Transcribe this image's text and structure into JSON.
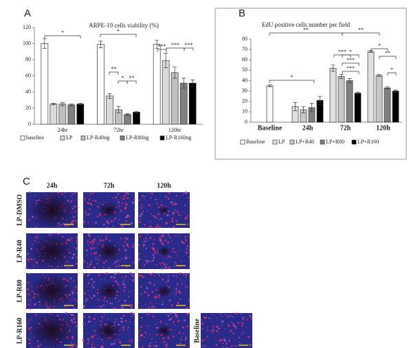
{
  "chart_data": [
    {
      "type": "bar",
      "panel": "A",
      "title": "ARPE-19 cells viability (%)",
      "categories": [
        "24hr",
        "72hr",
        "120hr"
      ],
      "series": [
        {
          "name": "baseline",
          "color": "#ffffff",
          "values": [
            100,
            99,
            99
          ],
          "errors": [
            6,
            4,
            5
          ]
        },
        {
          "name": "LP",
          "color": "#d9d9d9",
          "values": [
            25,
            35,
            79
          ],
          "errors": [
            1,
            3,
            9
          ]
        },
        {
          "name": "LP-R40ng",
          "color": "#bfbfbf",
          "values": [
            25,
            18,
            64
          ],
          "errors": [
            2,
            4,
            7
          ]
        },
        {
          "name": "LP-R80ng",
          "color": "#808080",
          "values": [
            24,
            12,
            51
          ],
          "errors": [
            1,
            1,
            6
          ]
        },
        {
          "name": "LP-R160ng",
          "color": "#000000",
          "values": [
            25,
            15,
            51
          ],
          "errors": [
            1,
            1,
            4
          ]
        }
      ],
      "ylim": [
        0,
        120
      ],
      "yticks": [
        0,
        20,
        40,
        60,
        80,
        100,
        120
      ],
      "grid": false,
      "annotations": [
        "*",
        "*",
        "**",
        "*",
        "**",
        "***",
        "***",
        "***"
      ]
    },
    {
      "type": "bar",
      "panel": "B",
      "title": "EdU positive cells number per field",
      "categories": [
        "Baseline",
        "24h",
        "72h",
        "120h"
      ],
      "series": [
        {
          "name": "Baseline",
          "color": "#ffffff",
          "values": [
            35,
            null,
            null,
            null
          ],
          "errors": [
            1,
            null,
            null,
            null
          ]
        },
        {
          "name": "LP",
          "color": "#e0e0e0",
          "values": [
            null,
            15,
            52,
            68
          ],
          "errors": [
            null,
            4,
            3,
            1
          ]
        },
        {
          "name": "LP+R40",
          "color": "#c8c8c8",
          "values": [
            null,
            12,
            44,
            45
          ],
          "errors": [
            null,
            3,
            2,
            1
          ]
        },
        {
          "name": "LP+R80",
          "color": "#808080",
          "values": [
            null,
            14,
            40,
            33
          ],
          "errors": [
            null,
            4,
            2,
            1
          ]
        },
        {
          "name": "LP+R160",
          "color": "#000000",
          "values": [
            null,
            21,
            28,
            30
          ],
          "errors": [
            null,
            4,
            1,
            1
          ]
        }
      ],
      "ylim": [
        0,
        80
      ],
      "yticks": [
        0,
        10,
        20,
        30,
        40,
        50,
        60,
        70,
        80
      ],
      "grid": false,
      "annotations": [
        "**",
        "**",
        "*",
        "***",
        "*",
        "***",
        "***",
        "*",
        "**",
        "*"
      ]
    }
  ],
  "figure_c": {
    "panel": "C",
    "columns": [
      "24h",
      "72h",
      "120h"
    ],
    "rows": [
      "LP-DMSO",
      "LP-R40",
      "LP-R80",
      "LP-R160"
    ],
    "extra_label": "Baseline"
  }
}
